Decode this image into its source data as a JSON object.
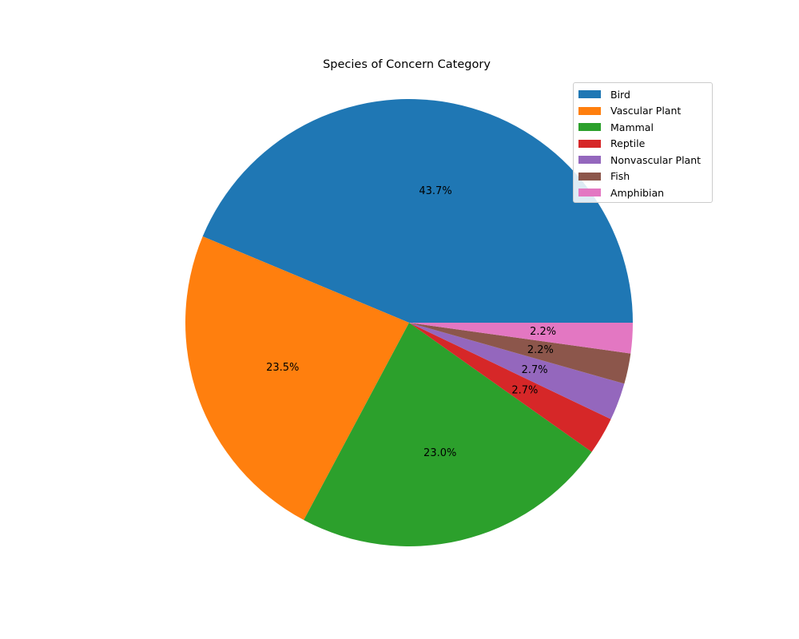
{
  "chart_data": {
    "type": "pie",
    "title": "Species of Concern Category",
    "categories": [
      "Bird",
      "Vascular Plant",
      "Mammal",
      "Reptile",
      "Nonvascular Plant",
      "Fish",
      "Amphibian"
    ],
    "values": [
      43.7,
      23.5,
      23.0,
      2.7,
      2.7,
      2.2,
      2.2
    ],
    "value_labels": [
      "43.7%",
      "23.5%",
      "23.0%",
      "2.7%",
      "2.7%",
      "2.2%",
      "2.2%"
    ],
    "colors": [
      "#1f77b4",
      "#ff7f0e",
      "#2ca02c",
      "#d62728",
      "#9467bd",
      "#8c564b",
      "#e377c2"
    ],
    "start_angle_deg": 0,
    "direction": "counterclockwise",
    "legend_position": "top-right"
  }
}
